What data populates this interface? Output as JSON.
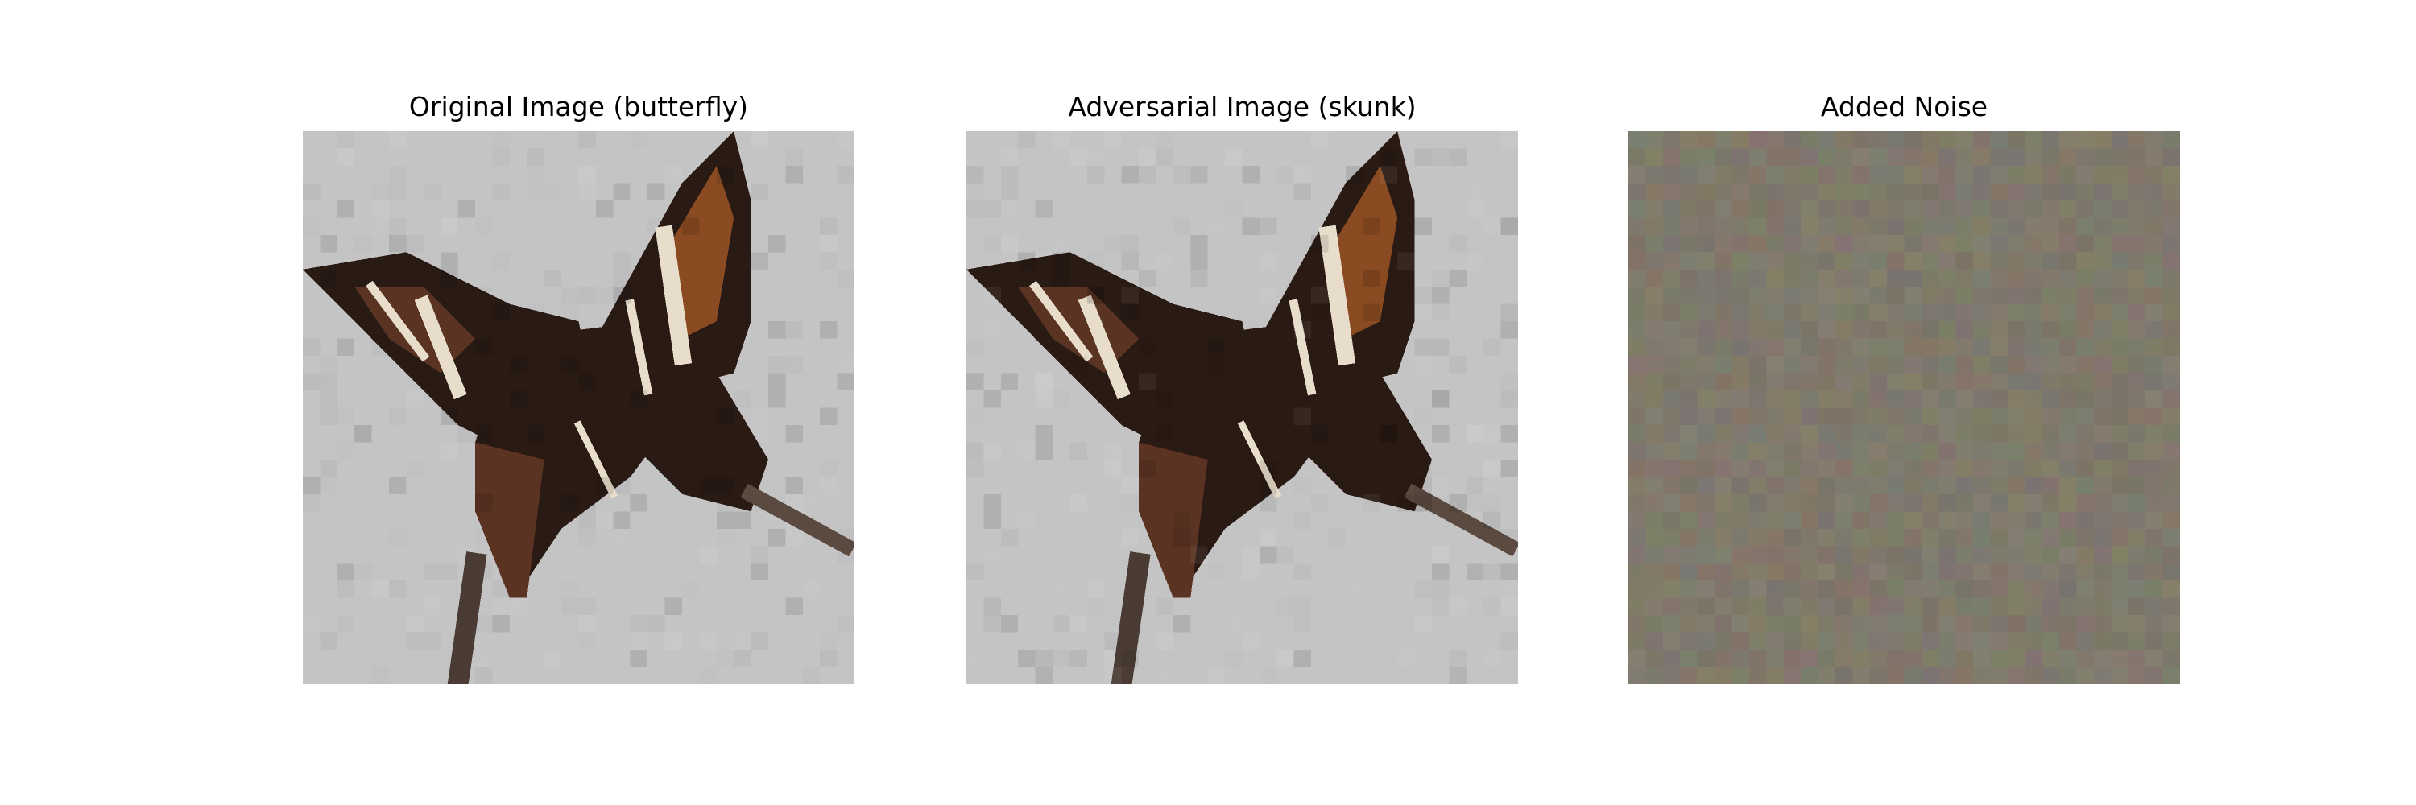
{
  "figure": {
    "panels": [
      {
        "title": "Original Image (butterfly)",
        "kind": "butterfly"
      },
      {
        "title": "Adversarial Image (skunk)",
        "kind": "butterfly-adversarial"
      },
      {
        "title": "Added Noise",
        "kind": "noise"
      }
    ]
  },
  "colors": {
    "figure_background": "#ffffff",
    "image_background": "#c4c4c4",
    "wing_dark": "#2a1a14",
    "wing_brown": "#5a3322",
    "wing_orange": "#8a4a22",
    "wing_stripe": "#e8dcca",
    "noise_base": "#86806f"
  }
}
